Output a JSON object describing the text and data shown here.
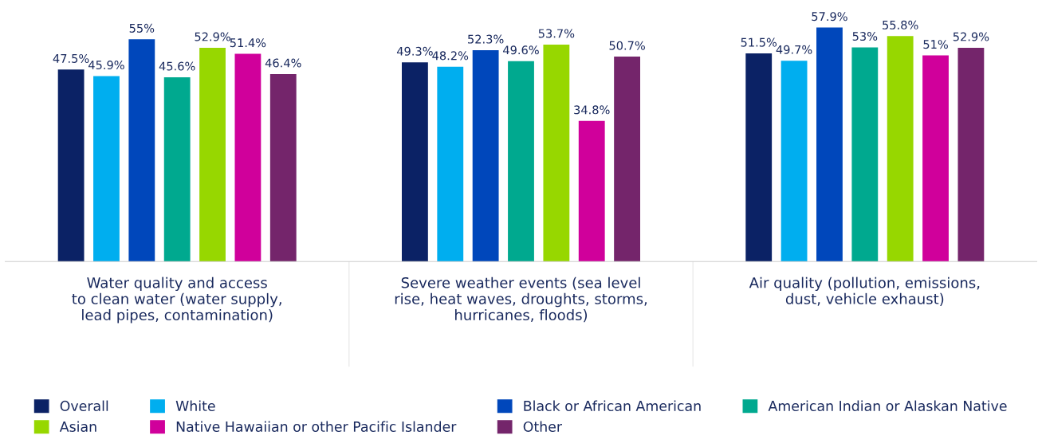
{
  "chart_data": {
    "type": "bar",
    "categories": [
      "Water quality and access\nto clean water (water supply,\nlead pipes, contamination)",
      "Severe weather events (sea level\nrise, heat waves, droughts, storms,\nhurricanes, floods)",
      "Air quality (pollution, emissions,\ndust, vehicle exhaust)"
    ],
    "series": [
      {
        "name": "Overall",
        "color": "#0b2265",
        "values": [
          47.5,
          49.3,
          51.5
        ],
        "value_labels": [
          "47.5%",
          "49.3%",
          "51.5%"
        ]
      },
      {
        "name": "White",
        "color": "#00aeef",
        "values": [
          45.9,
          48.2,
          49.7
        ],
        "value_labels": [
          "45.9%",
          "48.2%",
          "49.7%"
        ]
      },
      {
        "name": "Black or African American",
        "color": "#0047bb",
        "values": [
          55,
          52.3,
          57.9
        ],
        "value_labels": [
          "55%",
          "52.3%",
          "57.9%"
        ]
      },
      {
        "name": "American Indian or Alaskan Native",
        "color": "#00a98f",
        "values": [
          45.6,
          49.6,
          53
        ],
        "value_labels": [
          "45.6%",
          "49.6%",
          "53%"
        ]
      },
      {
        "name": "Asian",
        "color": "#97d700",
        "values": [
          52.9,
          53.7,
          55.8
        ],
        "value_labels": [
          "52.9%",
          "53.7%",
          "55.8%"
        ]
      },
      {
        "name": "Native Hawaiian or other Pacific Islander",
        "color": "#d0009b",
        "values": [
          51.4,
          34.8,
          51
        ],
        "value_labels": [
          "51.4%",
          "34.8%",
          "51%"
        ]
      },
      {
        "name": "Other",
        "color": "#74256b",
        "values": [
          46.4,
          50.7,
          52.9
        ],
        "value_labels": [
          "46.4%",
          "50.7%",
          "52.9%"
        ]
      }
    ],
    "legend": "bottom"
  }
}
